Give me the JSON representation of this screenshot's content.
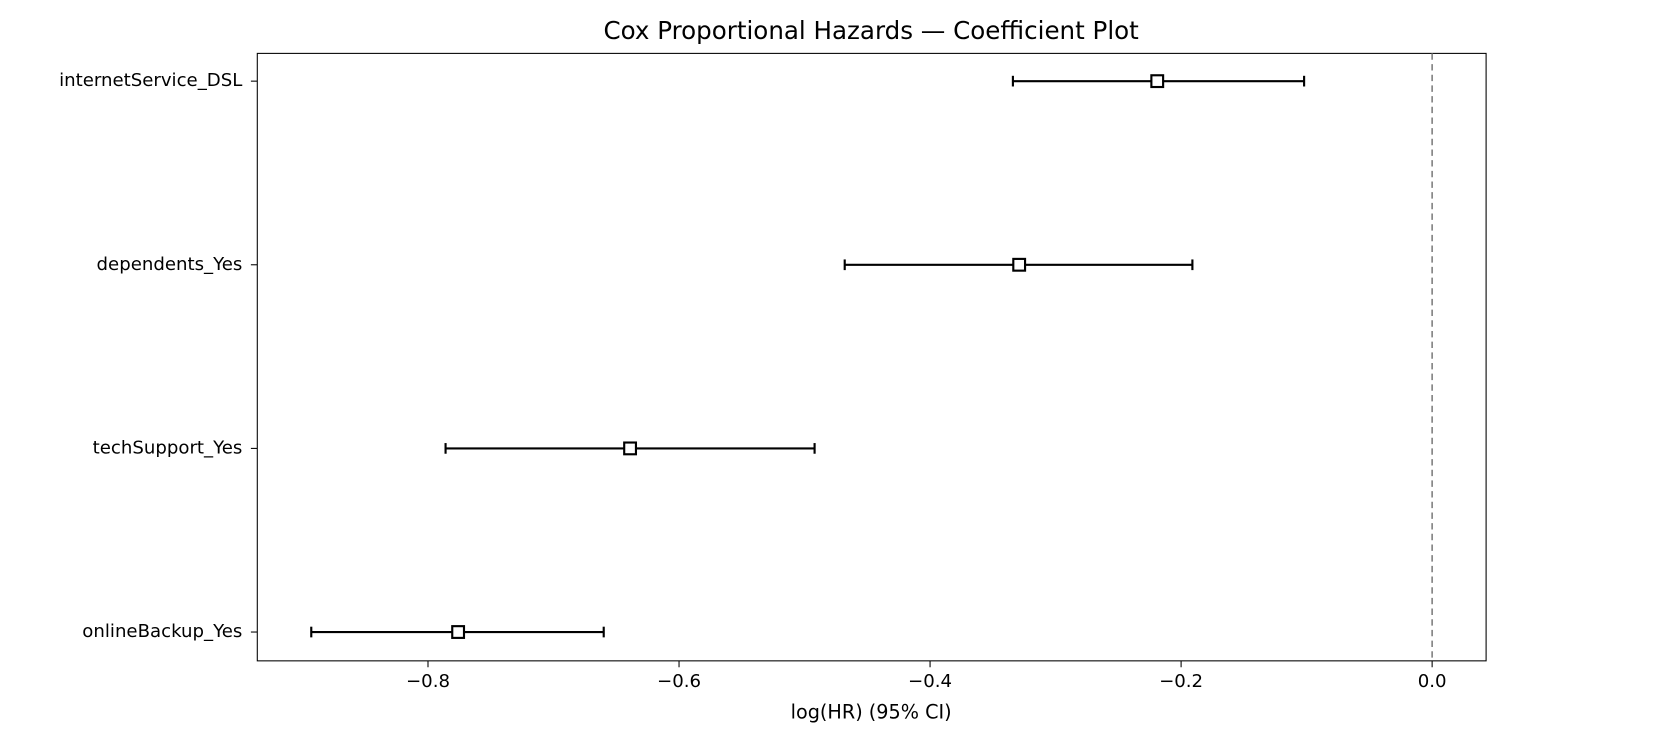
{
  "chart_data": {
    "type": "coefplot",
    "title": "Cox Proportional Hazards — Coefficient Plot",
    "xlabel": "log(HR) (95% CI)",
    "categories": [
      "internetService_DSL",
      "dependents_Yes",
      "techSupport_Yes",
      "onlineBackup_Yes"
    ],
    "values": [
      -0.219,
      -0.329,
      -0.639,
      -0.776
    ],
    "ci_lower": [
      -0.334,
      -0.468,
      -0.786,
      -0.893
    ],
    "ci_upper": [
      -0.102,
      -0.191,
      -0.492,
      -0.66
    ],
    "color": "#000000",
    "xlim": [
      -0.936,
      0.043
    ],
    "xticks": [
      {
        "value": -0.8,
        "label": "−0.8"
      },
      {
        "value": -0.6,
        "label": "−0.6"
      },
      {
        "value": -0.4,
        "label": "−0.4"
      },
      {
        "value": -0.2,
        "label": "−0.2"
      },
      {
        "value": 0,
        "label": "0.0"
      }
    ],
    "reference_line": 0,
    "reference_color": "#808080"
  }
}
